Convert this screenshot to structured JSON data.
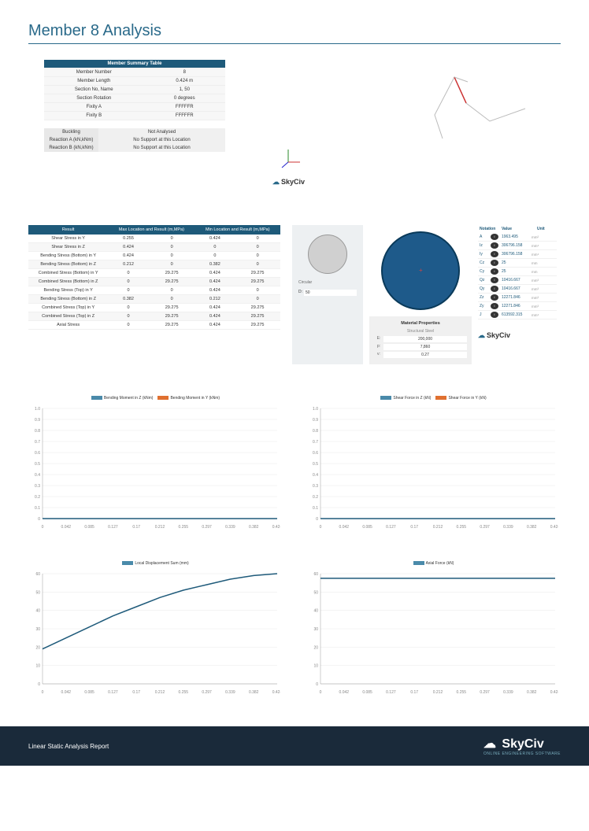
{
  "title": "Member 8 Analysis",
  "summary": {
    "header": "Member Summary Table",
    "rows": [
      [
        "Member Number",
        "8"
      ],
      [
        "Member Length",
        "0.424 m"
      ],
      [
        "Section No, Name",
        "1, 50"
      ],
      [
        "Section Rotation",
        "0 degrees"
      ],
      [
        "Fixity A",
        "FFFFFR"
      ],
      [
        "Fixity B",
        "FFFFFR"
      ]
    ]
  },
  "reactions": {
    "rows": [
      [
        "Buckling",
        "Not Analysed"
      ],
      [
        "Reaction A (kN,kNm)",
        "No Support at this Location"
      ],
      [
        "Reaction B (kN,kNm)",
        "No Support at this Location"
      ]
    ]
  },
  "logo_text": "SkyCiv",
  "results": {
    "headers": [
      "Result",
      "Max Location and Result (m,MPa)",
      "Min Location and Result (m,MPa)"
    ],
    "rows": [
      [
        "Shear Stress in Y",
        "0.255",
        "0",
        "0.424",
        "0"
      ],
      [
        "Shear Stress in Z",
        "0.424",
        "0",
        "0",
        "0"
      ],
      [
        "Bending Stress (Bottom) in Y",
        "0.424",
        "0",
        "0",
        "0"
      ],
      [
        "Bending Stress (Bottom) in Z",
        "0.212",
        "0",
        "0.382",
        "0"
      ],
      [
        "Combined Stress (Bottom) in Y",
        "0",
        "29.275",
        "0.424",
        "29.275"
      ],
      [
        "Combined Stress (Bottom) in Z",
        "0",
        "29.275",
        "0.424",
        "29.275"
      ],
      [
        "Bending Stress (Top) in Y",
        "0",
        "0",
        "0.424",
        "0"
      ],
      [
        "Bending Stress (Bottom) in Z",
        "0.382",
        "0",
        "0.212",
        "0"
      ],
      [
        "Combined Stress (Top) in Y",
        "0",
        "29.275",
        "0.424",
        "29.275"
      ],
      [
        "Combined Stress (Top) in Z",
        "0",
        "29.275",
        "0.424",
        "29.275"
      ],
      [
        "Axial Stress",
        "0",
        "29.275",
        "0.424",
        "29.275"
      ]
    ]
  },
  "section": {
    "type_label": "Circular",
    "d_label": "D:",
    "d_value": "50"
  },
  "material": {
    "title": "Material Properties",
    "name": "Structural Steel",
    "rows": [
      [
        "E:",
        "200,000"
      ],
      [
        "p:",
        "7,860"
      ],
      [
        "v:",
        "0.27"
      ]
    ]
  },
  "notation": {
    "hdr": [
      "Notation",
      "Value",
      "Unit"
    ],
    "rows": [
      [
        "A",
        "1963.495",
        "mm²"
      ],
      [
        "Iz",
        "306796.158",
        "mm⁴"
      ],
      [
        "Iy",
        "306796.158",
        "mm⁴"
      ],
      [
        "Cz",
        "25",
        "mm"
      ],
      [
        "Cy",
        "25",
        "mm"
      ],
      [
        "Qz",
        "10416.667",
        "mm³"
      ],
      [
        "Qy",
        "10416.667",
        "mm³"
      ],
      [
        "Zz",
        "12271.846",
        "mm³"
      ],
      [
        "Zy",
        "12271.846",
        "mm³"
      ],
      [
        "J",
        "613592.315",
        "mm⁴"
      ]
    ]
  },
  "charts": {
    "x_ticks": [
      "0",
      "0.042",
      "0.085",
      "0.127",
      "0.17",
      "0.212",
      "0.255",
      "0.297",
      "0.339",
      "0.382",
      "0.424"
    ],
    "bending": {
      "legends": [
        {
          "label": "Bending Moment in Z (kNm)",
          "color": "#4a8aaa"
        },
        {
          "label": "Bending Moment in Y (kNm)",
          "color": "#e07030"
        }
      ],
      "y_ticks": [
        "0",
        "0.1",
        "0.2",
        "0.3",
        "0.4",
        "0.5",
        "0.6",
        "0.7",
        "0.8",
        "0.9",
        "1.0"
      ],
      "ylim": [
        0,
        1.0
      ],
      "series": [
        {
          "color": "#1e5a7a",
          "points": [
            [
              0,
              0
            ],
            [
              1,
              0
            ]
          ]
        }
      ]
    },
    "shear": {
      "legends": [
        {
          "label": "Shear Force in Z (kN)",
          "color": "#4a8aaa"
        },
        {
          "label": "Shear Force in Y (kN)",
          "color": "#e07030"
        }
      ],
      "y_ticks": [
        "0",
        "0.1",
        "0.2",
        "0.3",
        "0.4",
        "0.5",
        "0.6",
        "0.7",
        "0.8",
        "0.9",
        "1.0"
      ],
      "ylim": [
        0,
        1.0
      ],
      "series": [
        {
          "color": "#1e5a7a",
          "points": [
            [
              0,
              0
            ],
            [
              1,
              0
            ]
          ]
        }
      ]
    },
    "displacement": {
      "legends": [
        {
          "label": "Local Displacement Sum (mm)",
          "color": "#4a8aaa"
        }
      ],
      "y_ticks": [
        "0",
        "10",
        "20",
        "30",
        "40",
        "50",
        "60"
      ],
      "ylim": [
        0,
        60
      ],
      "series": [
        {
          "color": "#1e5a7a",
          "points": [
            [
              0,
              19
            ],
            [
              0.1,
              25
            ],
            [
              0.2,
              31
            ],
            [
              0.3,
              37
            ],
            [
              0.4,
              42
            ],
            [
              0.5,
              47
            ],
            [
              0.6,
              51
            ],
            [
              0.7,
              54
            ],
            [
              0.8,
              57
            ],
            [
              0.9,
              59
            ],
            [
              1,
              60
            ]
          ]
        }
      ]
    },
    "axial": {
      "legends": [
        {
          "label": "Axial Force (kN)",
          "color": "#4a8aaa"
        }
      ],
      "y_ticks": [
        "0",
        "10",
        "20",
        "30",
        "40",
        "50",
        "60"
      ],
      "ylim": [
        0,
        60
      ],
      "series": [
        {
          "color": "#1e5a7a",
          "points": [
            [
              0,
              57.5
            ],
            [
              1,
              57.5
            ]
          ]
        }
      ]
    }
  },
  "footer": {
    "title": "Linear Static Analysis Report",
    "logo": "SkyCiv",
    "sub": "ONLINE ENGINEERING SOFTWARE"
  }
}
